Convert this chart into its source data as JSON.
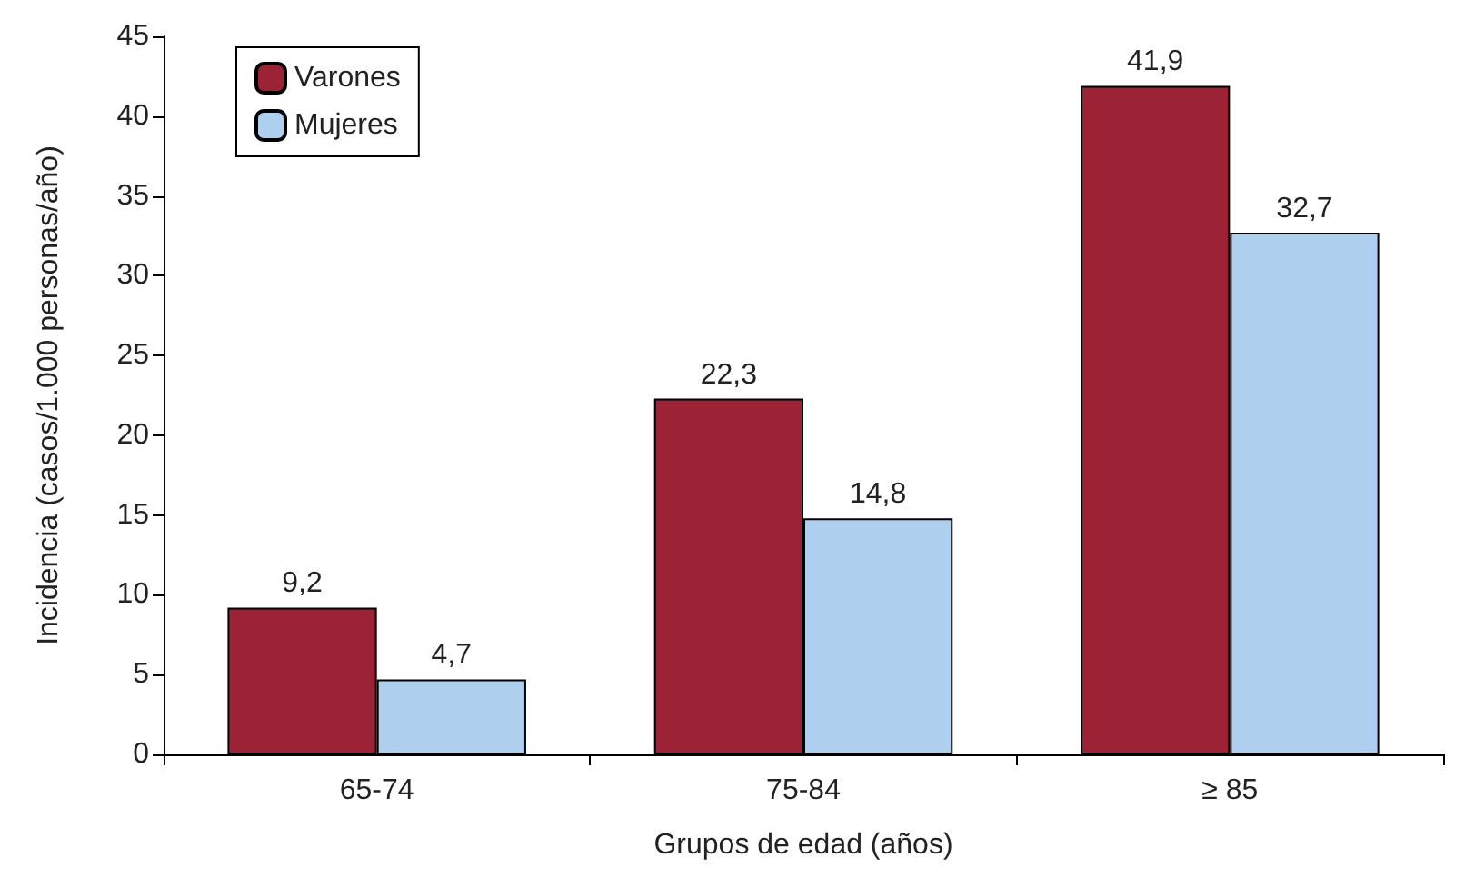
{
  "chart_data": {
    "type": "bar",
    "xlabel": "Grupos de edad (años)",
    "ylabel": "Incidencia (casos/1.000 personas/año)",
    "categories": [
      "65-74",
      "75-84",
      "≥ 85"
    ],
    "series": [
      {
        "name": "Varones",
        "color": "#9b2335",
        "values": [
          9.2,
          22.3,
          41.9
        ],
        "value_labels": [
          "9,2",
          "22,3",
          "41,9"
        ]
      },
      {
        "name": "Mujeres",
        "color": "#aed0ee",
        "values": [
          4.7,
          14.8,
          32.7
        ],
        "value_labels": [
          "4,7",
          "14,8",
          "32,7"
        ]
      }
    ],
    "ylim": [
      0,
      45
    ],
    "yticks": [
      0,
      5,
      10,
      15,
      20,
      25,
      30,
      35,
      40,
      45
    ],
    "grid": false,
    "legend": "top left"
  }
}
